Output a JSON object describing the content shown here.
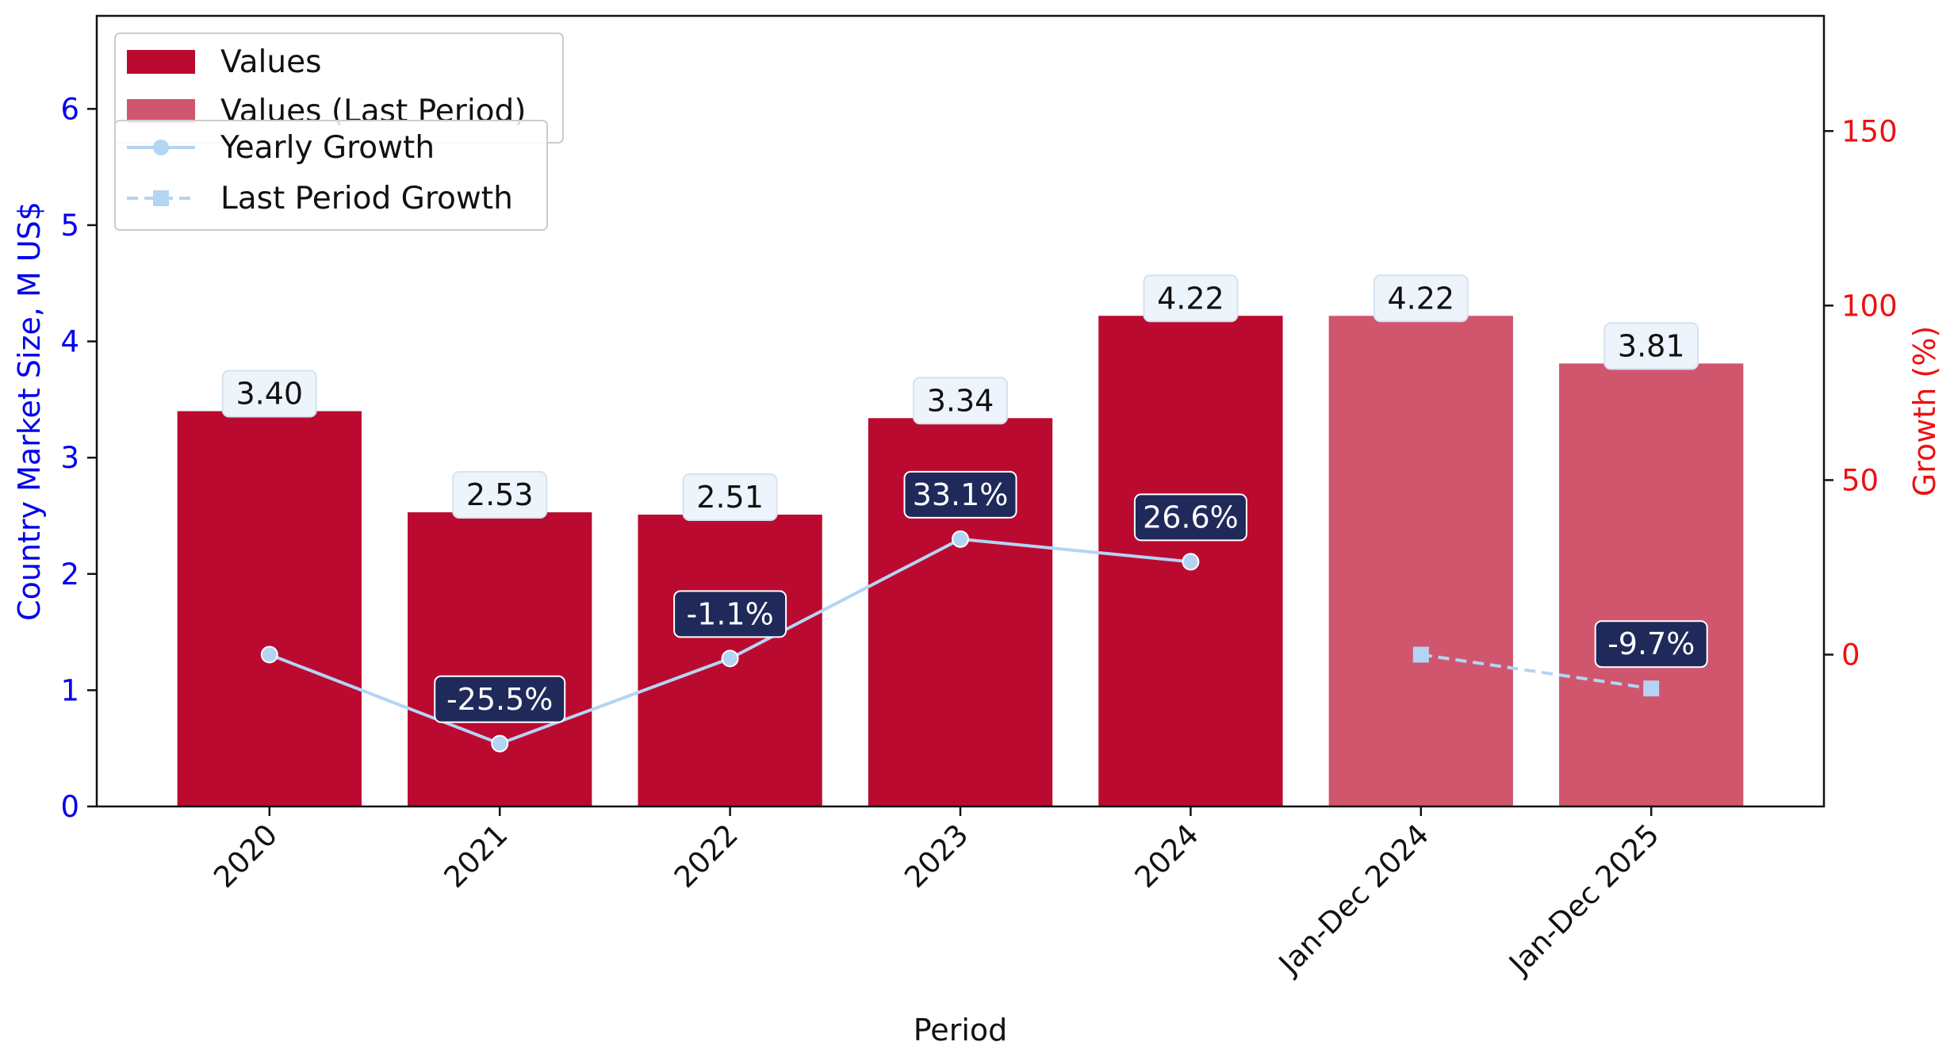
{
  "chart_data": {
    "type": "bar",
    "categories": [
      "2020",
      "2021",
      "2022",
      "2023",
      "2024",
      "Jan-Dec 2024",
      "Jan-Dec 2025"
    ],
    "series": [
      {
        "name": "Values",
        "kind": "bar",
        "axis": "left",
        "color": "#bb0a30",
        "values": [
          3.4,
          2.53,
          2.51,
          3.34,
          4.22,
          null,
          null
        ]
      },
      {
        "name": "Values (Last Period)",
        "kind": "bar",
        "axis": "left",
        "color": "#d0566e",
        "values": [
          null,
          null,
          null,
          null,
          null,
          4.22,
          3.81
        ]
      },
      {
        "name": "Yearly Growth",
        "kind": "line",
        "axis": "right",
        "color": "#b4d4f4",
        "marker": "circle",
        "dash": "solid",
        "values": [
          0,
          -25.5,
          -1.1,
          33.1,
          26.6,
          null,
          null
        ]
      },
      {
        "name": "Last Period Growth",
        "kind": "line",
        "axis": "right",
        "color": "#b4d4f4",
        "marker": "square",
        "dash": "dashed",
        "values": [
          null,
          null,
          null,
          null,
          null,
          0,
          -9.7
        ]
      }
    ],
    "bar_labels": [
      "3.40",
      "2.53",
      "2.51",
      "3.34",
      "4.22",
      "4.22",
      "3.81"
    ],
    "growth_labels": [
      {
        "index": 1,
        "text": "-25.5%",
        "value": -25.5
      },
      {
        "index": 2,
        "text": "-1.1%",
        "value": -1.1
      },
      {
        "index": 3,
        "text": "33.1%",
        "value": 33.1
      },
      {
        "index": 4,
        "text": "26.6%",
        "value": 26.6
      },
      {
        "index": 6,
        "text": "-9.7%",
        "value": -9.7
      }
    ],
    "xlabel": "Period",
    "ylabel": "Country Market Size, M US$",
    "ylabel_right": "Growth (%)",
    "ylim": [
      0,
      6.8
    ],
    "ylim_right": [
      -43.5,
      183
    ],
    "yticks": [
      "0",
      "1",
      "2",
      "3",
      "4",
      "5",
      "6"
    ],
    "yticks_right": [
      "0",
      "50",
      "100",
      "150"
    ],
    "legend_bars": [
      "Values",
      "Values (Last Period)"
    ],
    "legend_lines": [
      "Yearly Growth",
      "Last Period Growth"
    ],
    "legend_position": "top-left",
    "colors": {
      "left_axis": "#0000ee",
      "right_axis": "#ee1111",
      "label_box_dark": "#1f2a5a",
      "label_box_light": "#eef4fb"
    }
  }
}
